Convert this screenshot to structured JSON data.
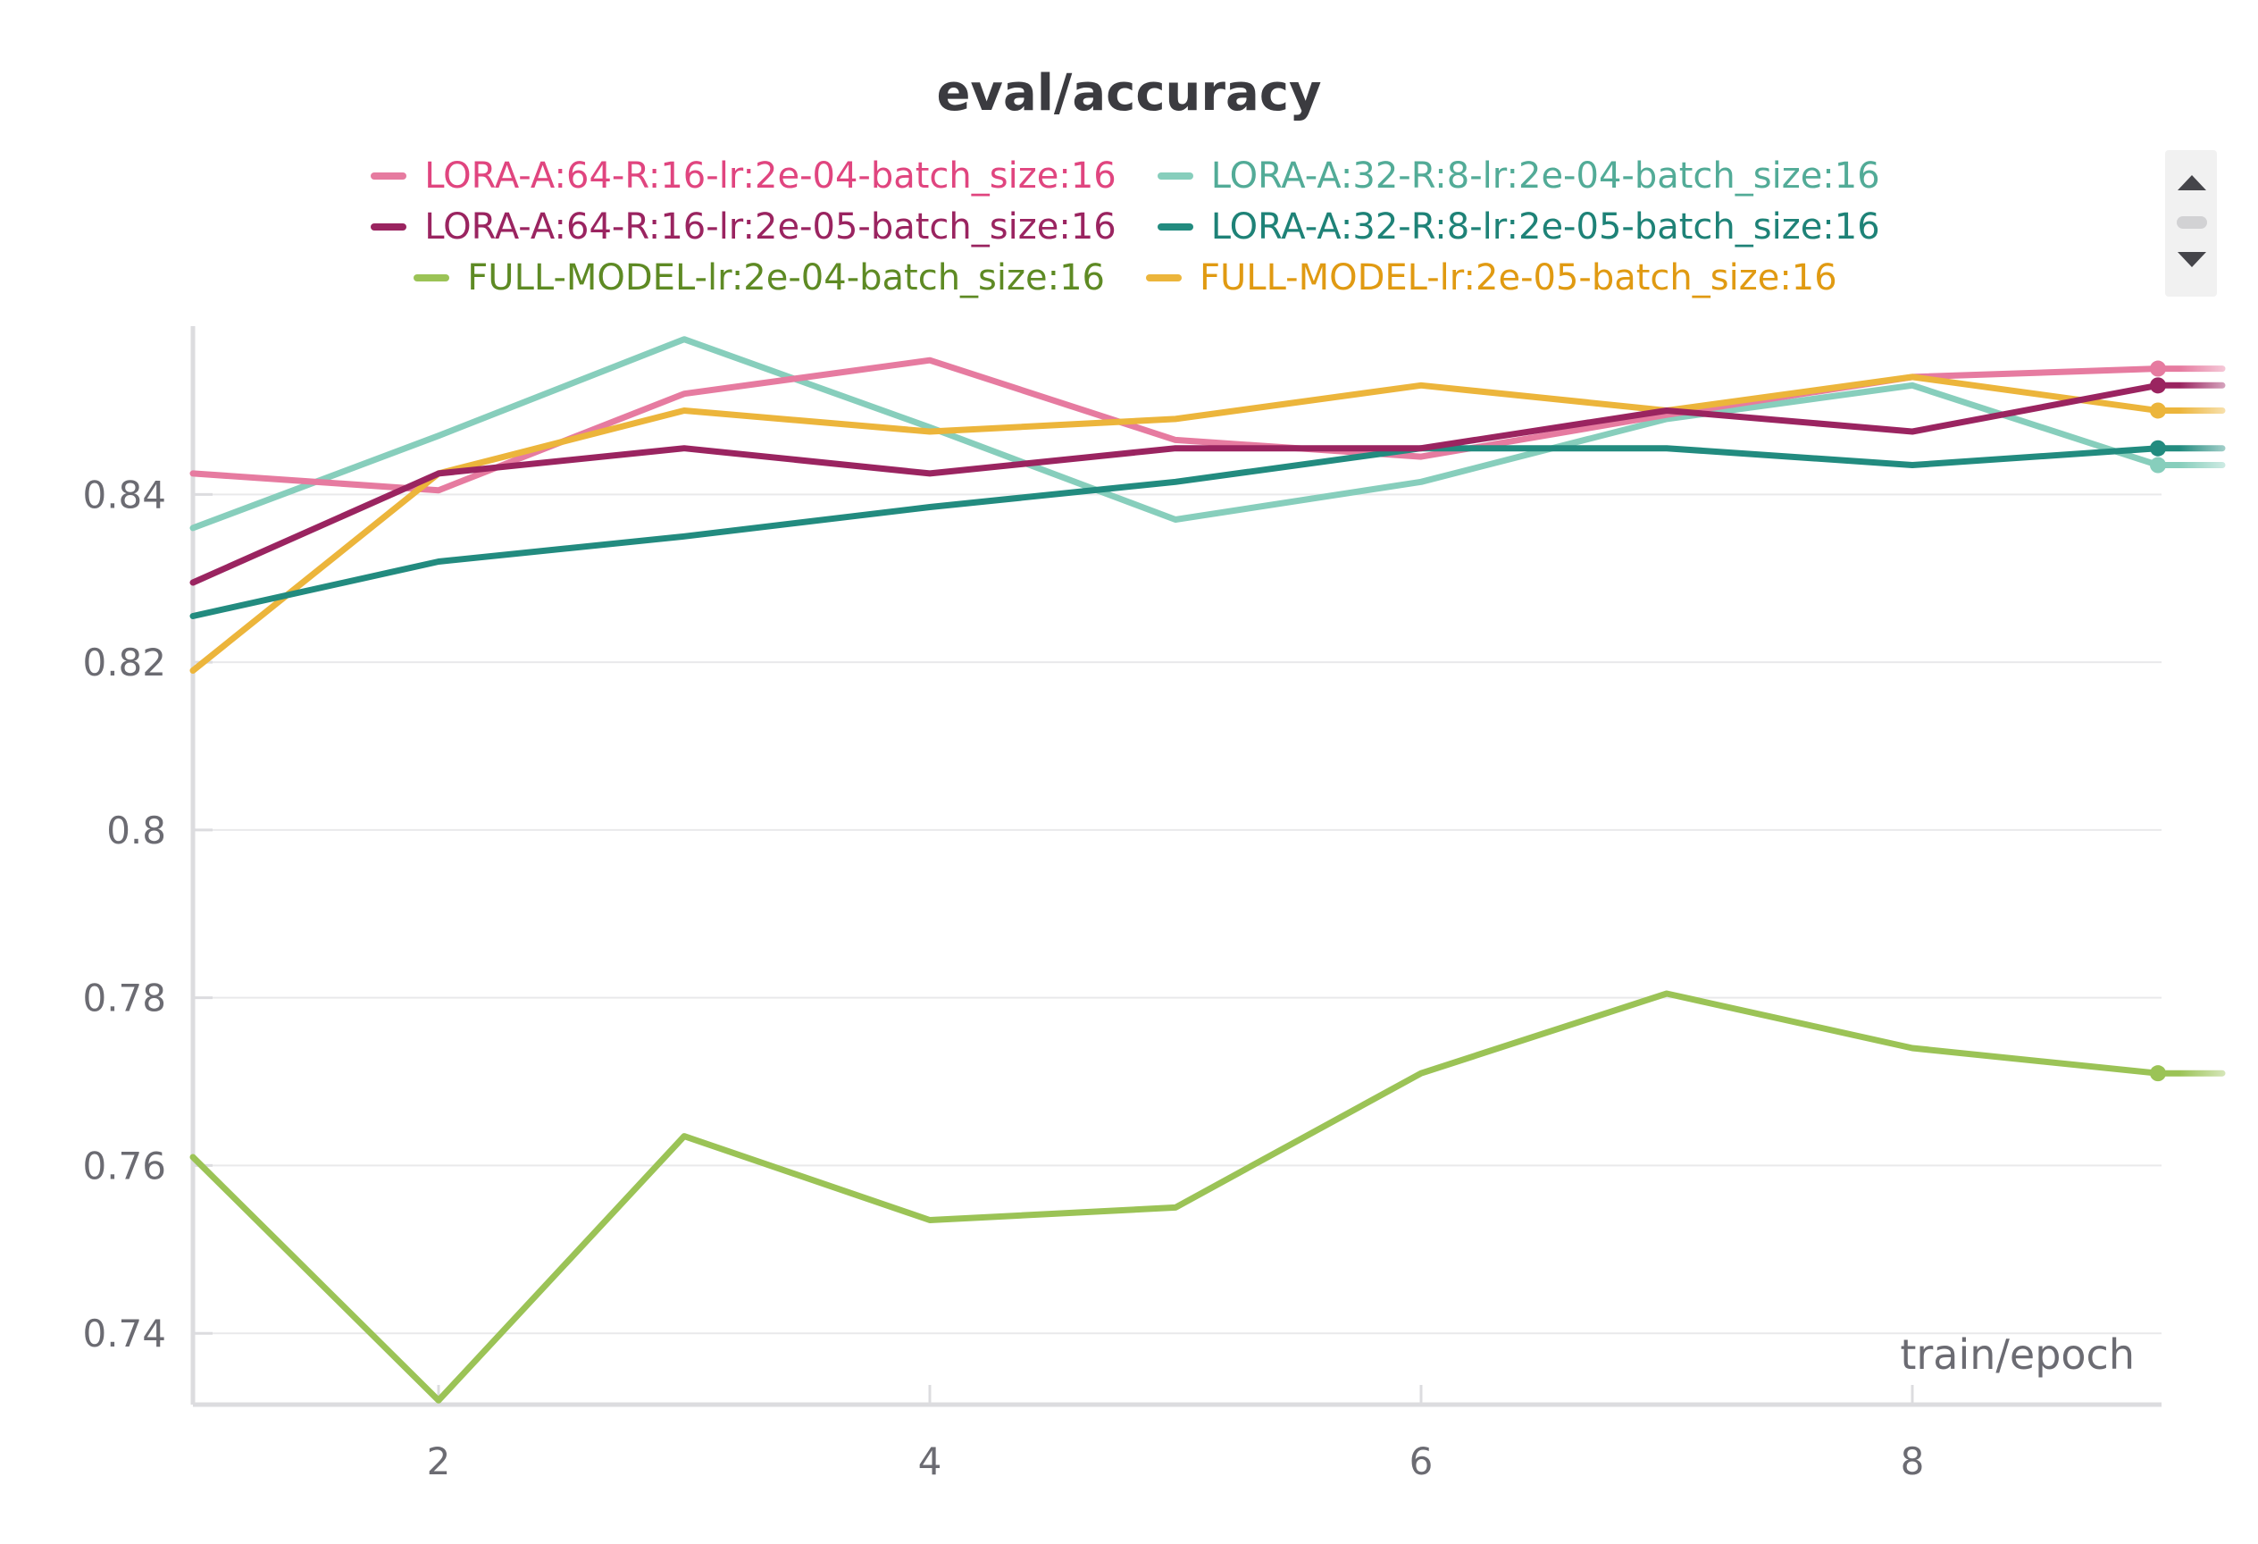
{
  "chart_data": {
    "type": "line",
    "title": "eval/accuracy",
    "xlabel": "train/epoch",
    "ylabel": "",
    "xlim": [
      1,
      10
    ],
    "ylim": [
      0.7315,
      0.859
    ],
    "x_ticks": [
      2,
      4,
      6,
      8
    ],
    "x_tick_labels": [
      "2",
      "4",
      "6",
      "8"
    ],
    "y_ticks": [
      0.74,
      0.76,
      0.78,
      0.8,
      0.82,
      0.84
    ],
    "y_tick_labels": [
      "0.74",
      "0.76",
      "0.78",
      "0.8",
      "0.82",
      "0.84"
    ],
    "grid": "horizontal",
    "legend_position": "top",
    "x": [
      1,
      2,
      3,
      4,
      5,
      6,
      7,
      8,
      9
    ],
    "series": [
      {
        "name": "LORA-A:64-R:16-lr:2e-04-batch_size:16",
        "color": "#e67ba0",
        "label_color": "#e0457f",
        "values": [
          0.8425,
          0.8405,
          0.852,
          0.856,
          0.8465,
          0.8445,
          0.8495,
          0.854,
          0.855
        ]
      },
      {
        "name": "LORA-A:32-R:8-lr:2e-04-batch_size:16",
        "color": "#87cebc",
        "label_color": "#52ab97",
        "values": [
          0.836,
          0.847,
          0.8585,
          0.848,
          0.837,
          0.8415,
          0.849,
          0.853,
          0.8435
        ]
      },
      {
        "name": "LORA-A:64-R:16-lr:2e-05-batch_size:16",
        "color": "#9a2460",
        "label_color": "#9a2460",
        "values": [
          0.8295,
          0.8425,
          0.8455,
          0.8425,
          0.8455,
          0.8455,
          0.85,
          0.8475,
          0.853
        ]
      },
      {
        "name": "LORA-A:32-R:8-lr:2e-05-batch_size:16",
        "color": "#228b7f",
        "label_color": "#1e8277",
        "values": [
          0.8255,
          0.832,
          0.835,
          0.8385,
          0.8415,
          0.8455,
          0.8455,
          0.8435,
          0.8455
        ]
      },
      {
        "name": "FULL-MODEL-lr:2e-04-batch_size:16",
        "color": "#9bc356",
        "label_color": "#5e8a24",
        "values": [
          0.761,
          0.732,
          0.7635,
          0.7535,
          0.755,
          0.771,
          0.7805,
          0.774,
          0.771
        ]
      },
      {
        "name": "FULL-MODEL-lr:2e-05-batch_size:16",
        "color": "#ecb53b",
        "label_color": "#e09a12",
        "values": [
          0.819,
          0.8425,
          0.85,
          0.8475,
          0.849,
          0.853,
          0.85,
          0.854,
          0.85
        ]
      }
    ]
  },
  "legend_rows": [
    [
      0,
      1
    ],
    [
      2,
      3
    ],
    [
      4,
      5
    ]
  ],
  "scroll_widget": {
    "up_icon": "caret-up-icon",
    "down_icon": "caret-down-icon"
  }
}
